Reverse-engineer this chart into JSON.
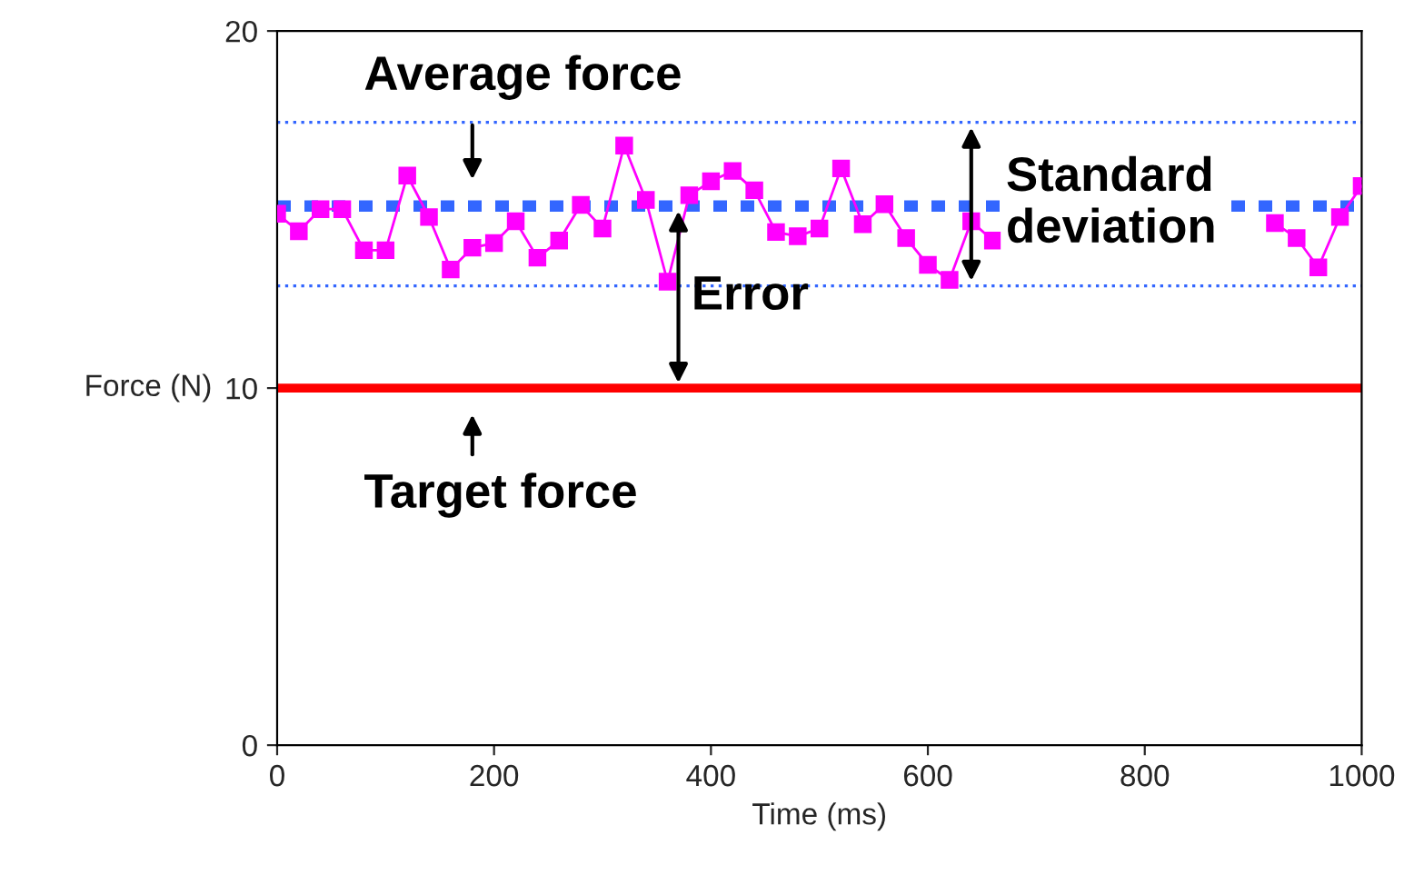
{
  "chart_data": {
    "type": "line",
    "xlabel": "Time (ms)",
    "ylabel": "Force (N)",
    "x": [
      0,
      20,
      40,
      60,
      80,
      100,
      120,
      140,
      160,
      180,
      200,
      220,
      240,
      260,
      280,
      300,
      320,
      340,
      360,
      380,
      400,
      420,
      440,
      460,
      480,
      500,
      520,
      540,
      560,
      580,
      600,
      620,
      640,
      660,
      680,
      700,
      720,
      740,
      760,
      780,
      800,
      820,
      840,
      860,
      880,
      900,
      920,
      940,
      960,
      980,
      1000
    ],
    "series": [
      {
        "color": "#ff00ff",
        "values": [
          14.88,
          14.39,
          15.01,
          15.01,
          13.86,
          13.86,
          15.95,
          14.79,
          13.32,
          13.93,
          14.06,
          14.67,
          13.65,
          14.13,
          15.13,
          14.47,
          16.79,
          15.27,
          12.98,
          15.4,
          15.79,
          16.08,
          15.54,
          14.37,
          14.25,
          14.47,
          16.15,
          14.59,
          15.15,
          14.2,
          13.45,
          13.03,
          14.67,
          14.13,
          null,
          null,
          null,
          null,
          null,
          null,
          null,
          null,
          null,
          null,
          null,
          null,
          14.62,
          14.2,
          13.38,
          14.79,
          15.66
        ]
      }
    ],
    "marker": "square",
    "line_style": "solid",
    "xlim": [
      0,
      1000
    ],
    "xticks": [
      0,
      200,
      400,
      600,
      800,
      1000
    ],
    "ylim": [
      0,
      20
    ],
    "yticks": [
      0,
      10,
      20
    ],
    "grid": false,
    "legend": false,
    "ref_lines": [
      {
        "axis": "y",
        "value": 15.1,
        "label": "Average force",
        "color": "#3366ff",
        "line_style": "dashed"
      },
      {
        "axis": "y",
        "value": 10,
        "label": "Target force",
        "color": "#ff0000",
        "line_style": "solid"
      },
      {
        "axis": "y",
        "value": 17.44,
        "color": "#3366ff",
        "line_style": "dotted"
      },
      {
        "axis": "y",
        "value": 12.86,
        "color": "#3366ff",
        "line_style": "dotted"
      }
    ],
    "annotations": [
      {
        "text": "Error",
        "x": 370,
        "y": 12.55
      },
      {
        "text": "Standard deviation",
        "x": 640,
        "y": 15.15
      }
    ]
  }
}
